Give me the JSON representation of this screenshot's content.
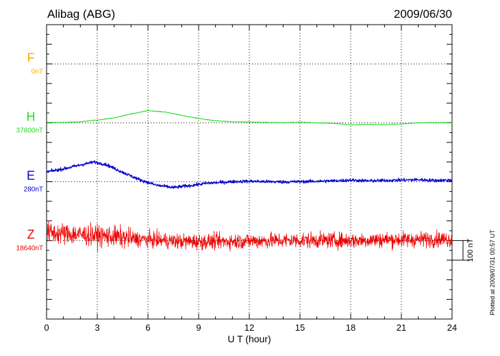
{
  "header": {
    "station": "Alibag (ABG)",
    "date": "2009/06/30"
  },
  "footer": {
    "plotted_note": "Plotted at 2009/07/31 00:57 UT"
  },
  "colors": {
    "F": "#ffaa00",
    "H": "#22dd22",
    "E": "#0000cc",
    "Z": "#ee0000",
    "axis": "#000000"
  },
  "chart_data": {
    "type": "line",
    "title": "Alibag (ABG)",
    "date": "2009/06/30",
    "xlabel": "U T (hour)",
    "xlim": [
      0,
      24
    ],
    "xticks": [
      0,
      3,
      6,
      9,
      12,
      15,
      18,
      21,
      24
    ],
    "xtick_labels": [
      "0",
      "3",
      "6",
      "9",
      "12",
      "15",
      "18",
      "21",
      "24"
    ],
    "ylim_nT": [
      -400,
      1100
    ],
    "grid": "dotted",
    "scale_bar": {
      "label": "100 nT",
      "value_nT": 100
    },
    "series": [
      {
        "name": "F",
        "baseline_label": "0nT",
        "offset_nT": 900,
        "points": []
      },
      {
        "name": "H",
        "baseline_label": "37800nT",
        "offset_nT": 600,
        "noise_nT": 1.5,
        "x": [
          0,
          1,
          2,
          3,
          4,
          5,
          6,
          7,
          8,
          9,
          10,
          11,
          12,
          13,
          14,
          15,
          16,
          17,
          18,
          19,
          20,
          21,
          22,
          23,
          24
        ],
        "values": [
          2,
          2,
          5,
          14,
          25,
          45,
          62,
          55,
          38,
          22,
          10,
          5,
          4,
          2,
          1,
          3,
          0,
          -3,
          -10,
          -8,
          -9,
          -6,
          0,
          2,
          1
        ]
      },
      {
        "name": "E",
        "baseline_label": "280nT",
        "offset_nT": 300,
        "noise_nT": 8,
        "x": [
          0,
          1,
          2,
          2.8,
          3.5,
          4.5,
          5.5,
          6.5,
          7.5,
          8.5,
          9.5,
          11,
          12,
          13,
          14,
          15,
          16,
          17,
          18,
          19,
          20,
          21,
          22,
          23,
          24
        ],
        "values": [
          50,
          65,
          85,
          100,
          88,
          48,
          10,
          -18,
          -30,
          -20,
          -8,
          0,
          2,
          0,
          -1,
          0,
          2,
          4,
          8,
          4,
          6,
          8,
          10,
          6,
          8
        ]
      },
      {
        "name": "Z",
        "baseline_label": "18640nT",
        "offset_nT": 0,
        "noise_nT": 38,
        "x": [
          0,
          1,
          2,
          3,
          4,
          5,
          6,
          7,
          8,
          9,
          10,
          12,
          14,
          16,
          18,
          20,
          22,
          23,
          24
        ],
        "values": [
          40,
          35,
          30,
          25,
          20,
          10,
          5,
          0,
          -5,
          -5,
          -5,
          -2,
          0,
          2,
          0,
          5,
          5,
          8,
          5
        ]
      }
    ]
  }
}
